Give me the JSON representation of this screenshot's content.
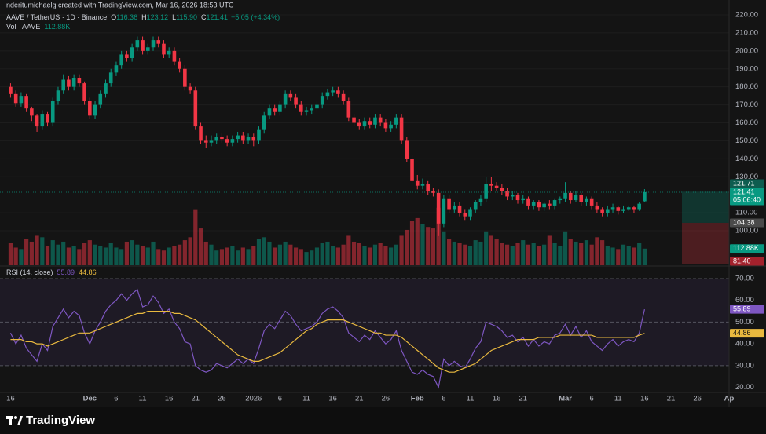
{
  "header": {
    "watermark": "nderitumichaelg created with TradingView.com, Mar 16, 2026 18:53 UTC"
  },
  "footer": {
    "brand": "TradingView"
  },
  "chart_data": [
    {
      "type": "candlestick",
      "title": "AAVE / TetherUS · 1D · Binance",
      "legend": [
        [
          "O",
          "116.36"
        ],
        [
          "H",
          "123.12"
        ],
        [
          "L",
          "115.90"
        ],
        [
          "C",
          "121.41"
        ]
      ],
      "change": "+5.05 (+4.34%)",
      "up_color": "#089981",
      "down_color": "#f23645",
      "x": [
        "2025-11-16",
        "2025-11-17",
        "2025-11-18",
        "2025-11-19",
        "2025-11-20",
        "2025-11-21",
        "2025-11-22",
        "2025-11-23",
        "2025-11-24",
        "2025-11-25",
        "2025-11-26",
        "2025-11-27",
        "2025-11-28",
        "2025-11-29",
        "2025-11-30",
        "2025-12-01",
        "2025-12-02",
        "2025-12-03",
        "2025-12-04",
        "2025-12-05",
        "2025-12-06",
        "2025-12-07",
        "2025-12-08",
        "2025-12-09",
        "2025-12-10",
        "2025-12-11",
        "2025-12-12",
        "2025-12-13",
        "2025-12-14",
        "2025-12-15",
        "2025-12-16",
        "2025-12-17",
        "2025-12-18",
        "2025-12-19",
        "2025-12-20",
        "2025-12-21",
        "2025-12-22",
        "2025-12-23",
        "2025-12-24",
        "2025-12-25",
        "2025-12-26",
        "2025-12-27",
        "2025-12-28",
        "2025-12-29",
        "2025-12-30",
        "2025-12-31",
        "2026-01-01",
        "2026-01-02",
        "2026-01-03",
        "2026-01-04",
        "2026-01-05",
        "2026-01-06",
        "2026-01-07",
        "2026-01-08",
        "2026-01-09",
        "2026-01-10",
        "2026-01-11",
        "2026-01-12",
        "2026-01-13",
        "2026-01-14",
        "2026-01-15",
        "2026-01-16",
        "2026-01-17",
        "2026-01-18",
        "2026-01-19",
        "2026-01-20",
        "2026-01-21",
        "2026-01-22",
        "2026-01-23",
        "2026-01-24",
        "2026-01-25",
        "2026-01-26",
        "2026-01-27",
        "2026-01-28",
        "2026-01-29",
        "2026-01-30",
        "2026-01-31",
        "2026-02-01",
        "2026-02-02",
        "2026-02-03",
        "2026-02-04",
        "2026-02-05",
        "2026-02-06",
        "2026-02-07",
        "2026-02-08",
        "2026-02-09",
        "2026-02-10",
        "2026-02-11",
        "2026-02-12",
        "2026-02-13",
        "2026-02-14",
        "2026-02-15",
        "2026-02-16",
        "2026-02-17",
        "2026-02-18",
        "2026-02-19",
        "2026-02-20",
        "2026-02-21",
        "2026-02-22",
        "2026-02-23",
        "2026-02-24",
        "2026-02-25",
        "2026-02-26",
        "2026-02-27",
        "2026-02-28",
        "2026-03-01",
        "2026-03-02",
        "2026-03-03",
        "2026-03-04",
        "2026-03-05",
        "2026-03-06",
        "2026-03-07",
        "2026-03-08",
        "2026-03-09",
        "2026-03-10",
        "2026-03-11",
        "2026-03-12",
        "2026-03-13",
        "2026-03-14",
        "2026-03-15",
        "2026-03-16"
      ],
      "open": [
        180,
        176,
        171,
        175,
        168,
        164,
        158,
        165,
        160,
        172,
        178,
        184,
        180,
        185,
        182,
        172,
        164,
        170,
        176,
        182,
        188,
        192,
        198,
        196,
        202,
        206,
        200,
        202,
        206,
        204,
        198,
        200,
        194,
        190,
        180,
        178,
        158,
        150,
        149,
        150,
        152,
        151,
        149,
        151,
        153,
        150,
        152,
        150,
        156,
        164,
        168,
        166,
        170,
        176,
        174,
        170,
        166,
        167,
        168,
        170,
        175,
        177,
        178,
        176,
        172,
        163,
        160,
        158,
        161,
        159,
        163,
        160,
        157,
        159,
        163,
        150,
        140,
        128,
        125,
        126,
        122,
        121,
        104,
        118,
        112,
        114,
        110,
        108,
        112,
        116,
        118,
        126,
        125,
        124,
        122,
        119,
        120,
        117,
        118,
        114,
        116,
        113,
        115,
        114,
        117,
        118,
        121,
        117,
        120,
        116,
        118,
        114,
        112,
        110,
        112,
        113,
        111,
        112,
        113,
        112,
        116.36
      ],
      "high": [
        182,
        178,
        177,
        176,
        169,
        165,
        167,
        166,
        174,
        180,
        187,
        186,
        187,
        187,
        183,
        174,
        172,
        178,
        184,
        190,
        194,
        200,
        200,
        204,
        208,
        208,
        204,
        208,
        208,
        206,
        202,
        202,
        196,
        192,
        182,
        180,
        160,
        153,
        153,
        154,
        154,
        153,
        153,
        155,
        155,
        154,
        154,
        158,
        166,
        170,
        170,
        172,
        178,
        178,
        176,
        172,
        169,
        170,
        172,
        177,
        179,
        180,
        180,
        178,
        174,
        165,
        162,
        163,
        163,
        165,
        165,
        162,
        161,
        165,
        165,
        152,
        142,
        131,
        129,
        128,
        124,
        123,
        120,
        120,
        116,
        116,
        112,
        113,
        117,
        120,
        130,
        130,
        127,
        126,
        124,
        122,
        121,
        120,
        119,
        117,
        117,
        116,
        117,
        118,
        119,
        127,
        122,
        122,
        121,
        119,
        119,
        116,
        113,
        114,
        115,
        114,
        114,
        114,
        114,
        116,
        123.12
      ],
      "low": [
        174,
        169,
        169,
        166,
        161,
        155,
        156,
        158,
        158,
        170,
        176,
        178,
        178,
        180,
        170,
        162,
        162,
        168,
        174,
        180,
        186,
        190,
        194,
        194,
        200,
        198,
        198,
        200,
        202,
        196,
        196,
        192,
        188,
        178,
        176,
        156,
        148,
        146,
        147,
        148,
        149,
        147,
        147,
        149,
        148,
        148,
        147,
        148,
        154,
        162,
        164,
        164,
        168,
        172,
        168,
        164,
        164,
        165,
        166,
        168,
        173,
        175,
        174,
        170,
        161,
        158,
        156,
        156,
        157,
        157,
        158,
        155,
        155,
        157,
        148,
        138,
        126,
        123,
        123,
        120,
        119,
        97,
        102,
        110,
        110,
        108,
        106,
        106,
        110,
        114,
        116,
        122,
        122,
        120,
        117,
        117,
        115,
        115,
        112,
        112,
        111,
        111,
        112,
        112,
        115,
        116,
        115,
        116,
        114,
        114,
        112,
        110,
        108,
        108,
        110,
        109,
        110,
        111,
        110,
        111,
        115.9
      ],
      "close": [
        176,
        171,
        175,
        168,
        164,
        158,
        165,
        160,
        172,
        178,
        184,
        180,
        185,
        182,
        172,
        164,
        170,
        176,
        182,
        188,
        192,
        198,
        196,
        202,
        206,
        200,
        202,
        206,
        204,
        198,
        200,
        194,
        190,
        180,
        178,
        158,
        150,
        149,
        150,
        152,
        151,
        149,
        151,
        153,
        150,
        152,
        150,
        156,
        164,
        168,
        166,
        170,
        176,
        174,
        170,
        166,
        167,
        168,
        170,
        175,
        177,
        178,
        176,
        172,
        163,
        160,
        158,
        161,
        159,
        163,
        160,
        157,
        159,
        163,
        150,
        140,
        128,
        125,
        126,
        122,
        121,
        104,
        118,
        112,
        114,
        110,
        108,
        112,
        116,
        118,
        126,
        125,
        124,
        122,
        119,
        120,
        117,
        118,
        114,
        116,
        113,
        115,
        114,
        117,
        118,
        121,
        117,
        120,
        116,
        118,
        114,
        112,
        110,
        112,
        113,
        111,
        112,
        113,
        112,
        115,
        121.41
      ],
      "countdown": "05:06:40",
      "ylim": [
        80.8,
        228.3
      ],
      "yticks": [
        {
          "value": 220,
          "label": "220.00"
        },
        {
          "value": 210,
          "label": "210.00"
        },
        {
          "value": 200,
          "label": "200.00"
        },
        {
          "value": 190,
          "label": "190.00"
        },
        {
          "value": 180,
          "label": "180.00"
        },
        {
          "value": 170,
          "label": "170.00"
        },
        {
          "value": 160,
          "label": "160.00"
        },
        {
          "value": 150,
          "label": "150.00"
        },
        {
          "value": 140,
          "label": "140.00"
        },
        {
          "value": 130,
          "label": "130.00"
        },
        {
          "value": 110,
          "label": "110.00"
        },
        {
          "value": 100,
          "label": "100.00"
        }
      ],
      "position": {
        "target": 121.71,
        "entry": 104.38,
        "stop": {
          "value": 81.4,
          "label": "81.40"
        }
      },
      "grid": true
    },
    {
      "type": "bar",
      "title": "Vol · AAVE",
      "last_value_label": "112.88K",
      "values": [
        150,
        120,
        110,
        180,
        160,
        200,
        190,
        130,
        170,
        140,
        160,
        120,
        130,
        110,
        150,
        170,
        140,
        130,
        120,
        150,
        120,
        110,
        160,
        170,
        140,
        130,
        120,
        160,
        110,
        100,
        120,
        130,
        140,
        170,
        190,
        380,
        250,
        160,
        140,
        100,
        110,
        120,
        130,
        100,
        120,
        110,
        130,
        180,
        190,
        160,
        120,
        140,
        160,
        140,
        120,
        110,
        90,
        100,
        120,
        150,
        160,
        130,
        120,
        140,
        200,
        160,
        150,
        130,
        120,
        140,
        150,
        130,
        120,
        140,
        200,
        240,
        300,
        320,
        280,
        260,
        250,
        390,
        230,
        180,
        160,
        150,
        140,
        130,
        170,
        160,
        230,
        200,
        180,
        150,
        140,
        130,
        150,
        170,
        140,
        150,
        130,
        140,
        200,
        150,
        130,
        230,
        180,
        160,
        150,
        170,
        140,
        190,
        170,
        130,
        120,
        110,
        140,
        130,
        120,
        150,
        112.88
      ],
      "ylim": [
        0,
        1800
      ]
    },
    {
      "type": "line",
      "title": "RSI (14, close)",
      "series": [
        {
          "color": "#7e57c2",
          "values": [
            45,
            40,
            44,
            38,
            35,
            32,
            40,
            37,
            48,
            52,
            56,
            52,
            55,
            53,
            45,
            40,
            46,
            50,
            55,
            58,
            60,
            63,
            60,
            63,
            65,
            57,
            58,
            62,
            59,
            54,
            56,
            50,
            47,
            41,
            40,
            30,
            28,
            27,
            28,
            31,
            30,
            29,
            31,
            33,
            31,
            33,
            31,
            38,
            46,
            49,
            47,
            51,
            55,
            53,
            49,
            46,
            47,
            48,
            50,
            54,
            56,
            57,
            55,
            52,
            45,
            43,
            41,
            44,
            42,
            46,
            43,
            40,
            42,
            46,
            37,
            32,
            27,
            26,
            28,
            26,
            25,
            20,
            33,
            30,
            32,
            30,
            29,
            33,
            38,
            41,
            50,
            49,
            48,
            46,
            43,
            44,
            41,
            43,
            39,
            42,
            39,
            41,
            40,
            44,
            45,
            49,
            44,
            48,
            43,
            46,
            41,
            39,
            37,
            40,
            42,
            39,
            41,
            42,
            41,
            45,
            55.89
          ]
        },
        {
          "color": "#e9b93f",
          "values": [
            42,
            42,
            42,
            41,
            41,
            40,
            40,
            39,
            40,
            41,
            42,
            43,
            44,
            45,
            45,
            45,
            46,
            47,
            48,
            49,
            50,
            51,
            52,
            53,
            54,
            54,
            55,
            55,
            55,
            55,
            55,
            54,
            54,
            53,
            52,
            51,
            49,
            47,
            45,
            43,
            41,
            39,
            37,
            35,
            34,
            33,
            32,
            32,
            33,
            34,
            35,
            36,
            38,
            40,
            42,
            44,
            46,
            47,
            49,
            50,
            51,
            51,
            51,
            51,
            50,
            49,
            48,
            47,
            46,
            45,
            45,
            44,
            44,
            44,
            43,
            41,
            39,
            37,
            35,
            33,
            31,
            29,
            28,
            27,
            27,
            28,
            29,
            30,
            31,
            33,
            35,
            37,
            38,
            39,
            40,
            41,
            42,
            42,
            42,
            42,
            43,
            43,
            43,
            43,
            44,
            44,
            44,
            44,
            44,
            44,
            44,
            43,
            43,
            43,
            43,
            43,
            43,
            43,
            43,
            44,
            44.86
          ]
        }
      ],
      "ylim": [
        17.7,
        75.4
      ],
      "yticks": [
        {
          "value": 70,
          "label": "70.00"
        },
        {
          "value": 60,
          "label": "60.00"
        },
        {
          "value": 50,
          "label": "50.00"
        },
        {
          "value": 40,
          "label": "40.00"
        },
        {
          "value": 30,
          "label": "30.00"
        },
        {
          "value": 20,
          "label": "20.00"
        }
      ],
      "levels": [
        70,
        50,
        30
      ],
      "xlim": [
        "2025-11-14",
        "2026-04-01"
      ],
      "xticks": [
        {
          "value": "2025-11-16",
          "label": "16"
        },
        {
          "value": "2025-12-01",
          "label": "Dec"
        },
        {
          "value": "2025-12-06",
          "label": "6"
        },
        {
          "value": "2025-12-11",
          "label": "11"
        },
        {
          "value": "2025-12-16",
          "label": "16"
        },
        {
          "value": "2025-12-21",
          "label": "21"
        },
        {
          "value": "2025-12-26",
          "label": "26"
        },
        {
          "value": "2026-01-01",
          "label": "2026"
        },
        {
          "value": "2026-01-06",
          "label": "6"
        },
        {
          "value": "2026-01-11",
          "label": "11"
        },
        {
          "value": "2026-01-16",
          "label": "16"
        },
        {
          "value": "2026-01-21",
          "label": "21"
        },
        {
          "value": "2026-01-26",
          "label": "26"
        },
        {
          "value": "2026-02-01",
          "label": "Feb"
        },
        {
          "value": "2026-02-06",
          "label": "6"
        },
        {
          "value": "2026-02-11",
          "label": "11"
        },
        {
          "value": "2026-02-16",
          "label": "16"
        },
        {
          "value": "2026-02-21",
          "label": "21"
        },
        {
          "value": "2026-03-01",
          "label": "Mar"
        },
        {
          "value": "2026-03-06",
          "label": "6"
        },
        {
          "value": "2026-03-11",
          "label": "11"
        },
        {
          "value": "2026-03-16",
          "label": "16"
        },
        {
          "value": "2026-03-21",
          "label": "21"
        },
        {
          "value": "2026-03-26",
          "label": "26"
        },
        {
          "value": "2026-04-01",
          "label": "Ap"
        }
      ]
    }
  ]
}
